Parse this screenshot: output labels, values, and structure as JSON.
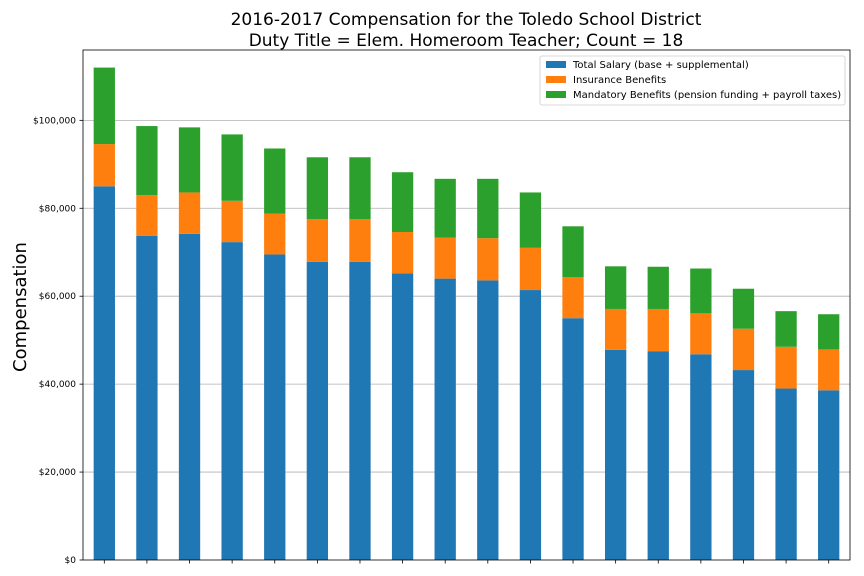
{
  "chart_data": {
    "type": "bar",
    "stacked": true,
    "title_line1": "2016-2017 Compensation for the Toledo School District",
    "title_line2": "Duty Title = Elem. Homeroom Teacher; Count = 18",
    "xlabel": "",
    "ylabel": "Compensation",
    "ylim": [
      0,
      116000
    ],
    "yticks": [
      0,
      20000,
      40000,
      60000,
      80000,
      100000
    ],
    "ytick_labels": [
      "$0",
      "$20,000",
      "$40,000",
      "$60,000",
      "$80,000",
      "$100,000"
    ],
    "grid": "horizontal",
    "legend_position": "top-right",
    "categories": [
      "",
      "",
      "",
      "",
      "",
      "",
      "",
      "",
      "",
      "",
      "",
      "",
      "",
      "",
      "",
      "",
      "",
      ""
    ],
    "series": [
      {
        "name": "Total Salary (base + supplemental)",
        "color": "#1f77b4",
        "values": [
          85000,
          73700,
          74200,
          72300,
          69500,
          67800,
          67800,
          65200,
          64000,
          63600,
          61400,
          55000,
          47800,
          47500,
          46800,
          43200,
          39000,
          38600
        ]
      },
      {
        "name": "Insurance Benefits",
        "color": "#ff7f0e",
        "values": [
          9600,
          9300,
          9400,
          9400,
          9300,
          9700,
          9700,
          9400,
          9300,
          9600,
          9600,
          9300,
          9300,
          9600,
          9300,
          9400,
          9500,
          9300
        ]
      },
      {
        "name": "Mandatory Benefits (pension funding + payroll taxes)",
        "color": "#2ca02c",
        "values": [
          17400,
          15700,
          14800,
          15100,
          14800,
          14100,
          14100,
          13600,
          13400,
          13500,
          12600,
          11600,
          9700,
          9600,
          10200,
          9100,
          8100,
          8000
        ]
      }
    ]
  }
}
